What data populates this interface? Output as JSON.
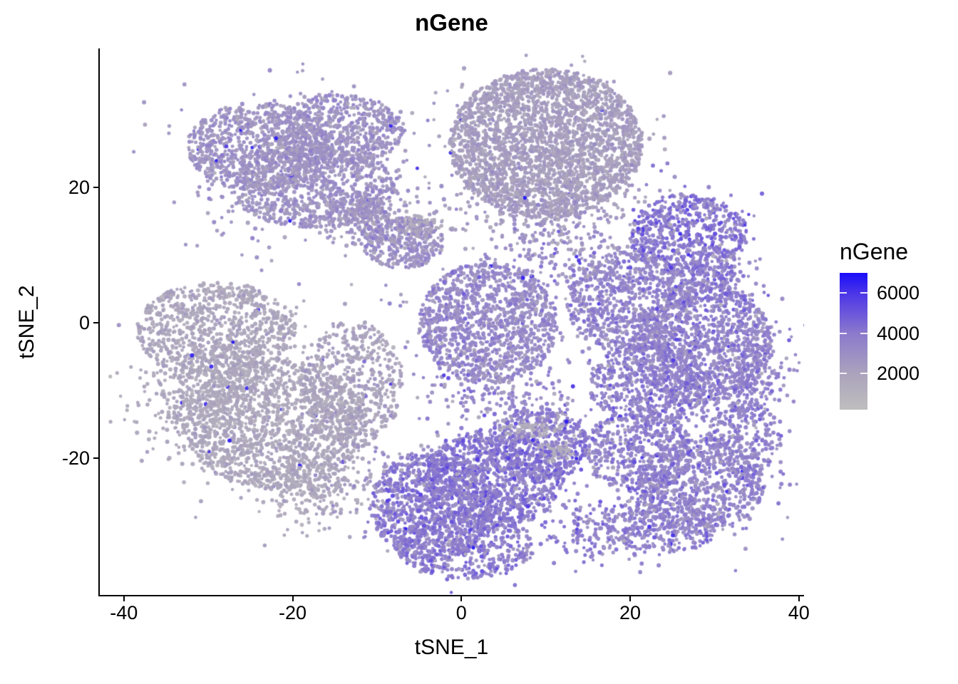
{
  "chart_data": {
    "type": "scatter",
    "title": "nGene",
    "xlabel": "tSNE_1",
    "ylabel": "tSNE_2",
    "x_ticks": [
      -40,
      -20,
      0,
      20,
      40
    ],
    "y_ticks": [
      20,
      0,
      -20
    ],
    "xlim": [
      -42.9,
      40.6
    ],
    "ylim": [
      -40.3,
      40.4
    ],
    "grid": false,
    "background": "#ffffff",
    "point_color_low": "#BFBEBE",
    "point_color_high": "#1A0DFA",
    "legend": {
      "title": "nGene",
      "position": "right",
      "ticks": [
        6000,
        4000,
        2000
      ],
      "range": [
        200,
        7000
      ]
    },
    "color_stops": [
      {
        "t": 0.0,
        "color": "#BFBEBE"
      },
      {
        "t": 0.26,
        "color": "#ABA3BC"
      },
      {
        "t": 0.56,
        "color": "#8B79CD"
      },
      {
        "t": 0.85,
        "color": "#4B35E8"
      },
      {
        "t": 1.0,
        "color": "#1A0DFA"
      }
    ],
    "clusters": [
      {
        "id": "topleft-lobe-1",
        "shape": "disc",
        "cx": -24,
        "cy": 26,
        "sx": 8.5,
        "sy": 6.6,
        "n": 800,
        "mean": 2750,
        "sd": 450
      },
      {
        "id": "topleft-lobe-2",
        "shape": "disc",
        "cx": -14.5,
        "cy": 28.5,
        "sx": 7.8,
        "sy": 5.2,
        "n": 600,
        "mean": 2850,
        "sd": 450
      },
      {
        "id": "topleft-lobe-3",
        "shape": "disc",
        "cx": -17.5,
        "cy": 20,
        "sx": 9.6,
        "sy": 6.0,
        "n": 800,
        "mean": 2800,
        "sd": 450
      },
      {
        "id": "topleft-tail",
        "shape": "gauss",
        "cx": -11.5,
        "cy": 15.5,
        "sx": 2.2,
        "sy": 2.0,
        "n": 180,
        "mean": 2700,
        "sd": 450
      },
      {
        "id": "topleft-halo",
        "shape": "gauss",
        "cx": -20,
        "cy": 23,
        "sx": 8,
        "sy": 6,
        "n": 250,
        "mean": 2800,
        "sd": 450
      },
      {
        "id": "topcenter-disc",
        "shape": "disc",
        "cx": 10,
        "cy": 26.5,
        "sx": 11.5,
        "sy": 11.0,
        "n": 2600,
        "mean": 2250,
        "sd": 330
      },
      {
        "id": "topcenter-halo",
        "shape": "gauss",
        "cx": 10,
        "cy": 26,
        "sx": 7.5,
        "sy": 7.0,
        "n": 200,
        "mean": 2300,
        "sd": 350
      },
      {
        "id": "topcenter-skirt",
        "shape": "gauss",
        "cx": 9,
        "cy": 16.5,
        "sx": 6.5,
        "sy": 2.6,
        "n": 230,
        "mean": 2500,
        "sd": 450
      },
      {
        "id": "left-lobe-1",
        "shape": "disc",
        "cx": -29,
        "cy": -1,
        "sx": 9.5,
        "sy": 7.0,
        "n": 900,
        "mean": 1800,
        "sd": 360
      },
      {
        "id": "left-lobe-2",
        "shape": "disc",
        "cx": -22,
        "cy": -15,
        "sx": 11.0,
        "sy": 9.5,
        "n": 1300,
        "mean": 1750,
        "sd": 360
      },
      {
        "id": "left-lobe-3",
        "shape": "disc",
        "cx": -13,
        "cy": -9,
        "sx": 6.0,
        "sy": 9.5,
        "n": 500,
        "mean": 2050,
        "sd": 420
      },
      {
        "id": "left-lobe-4",
        "shape": "gauss",
        "cx": -31,
        "cy": -11,
        "sx": 3.8,
        "sy": 3.8,
        "n": 350,
        "mean": 1700,
        "sd": 340
      },
      {
        "id": "left-tail",
        "shape": "gauss",
        "cx": -18,
        "cy": -25,
        "sx": 3.0,
        "sy": 2.5,
        "n": 200,
        "mean": 1700,
        "sd": 350
      },
      {
        "id": "left-halo",
        "shape": "gauss",
        "cx": -23,
        "cy": -12,
        "sx": 8,
        "sy": 7,
        "n": 300,
        "mean": 1800,
        "sd": 380
      },
      {
        "id": "midsmall-core",
        "shape": "disc",
        "cx": -6.9,
        "cy": 11.9,
        "sx": 4.8,
        "sy": 3.9,
        "n": 330,
        "mean": 2900,
        "sd": 600
      },
      {
        "id": "midsmall-grayarc",
        "shape": "gauss",
        "cx": -5.2,
        "cy": 14.5,
        "sx": 1.6,
        "sy": 0.9,
        "n": 80,
        "mean": 1550,
        "sd": 250
      },
      {
        "id": "center-disc",
        "shape": "disc",
        "cx": 3.2,
        "cy": 0,
        "sx": 8.2,
        "sy": 9.0,
        "n": 1100,
        "mean": 3250,
        "sd": 550
      },
      {
        "id": "center-halo",
        "shape": "gauss",
        "cx": 3.2,
        "cy": 0,
        "sx": 6,
        "sy": 6,
        "n": 150,
        "mean": 3250,
        "sd": 600
      },
      {
        "id": "right-lobe-1",
        "shape": "disc",
        "cx": 20,
        "cy": 3,
        "sx": 7.5,
        "sy": 7.5,
        "n": 700,
        "mean": 3450,
        "sd": 600
      },
      {
        "id": "right-lobe-2",
        "shape": "disc",
        "cx": 28.5,
        "cy": -3,
        "sx": 8.2,
        "sy": 9.0,
        "n": 900,
        "mean": 3650,
        "sd": 600
      },
      {
        "id": "right-lobe-3",
        "shape": "disc",
        "cx": 22,
        "cy": -9,
        "sx": 7.0,
        "sy": 6.2,
        "n": 500,
        "mean": 3650,
        "sd": 600
      },
      {
        "id": "right-arm",
        "shape": "gauss",
        "cx": 35,
        "cy": -6,
        "sx": 1.8,
        "sy": 3.8,
        "n": 180,
        "mean": 3500,
        "sd": 600
      },
      {
        "id": "right-halo",
        "shape": "gauss",
        "cx": 25,
        "cy": -2,
        "sx": 7,
        "sy": 6.5,
        "n": 250,
        "mean": 3550,
        "sd": 600
      },
      {
        "id": "topright-core",
        "shape": "disc",
        "cx": 26.9,
        "cy": 13,
        "sx": 7.0,
        "sy": 6.0,
        "n": 550,
        "mean": 4100,
        "sd": 700
      },
      {
        "id": "topright-tail",
        "shape": "gauss",
        "cx": 30.5,
        "cy": 6.5,
        "sx": 1.6,
        "sy": 2.4,
        "n": 110,
        "mean": 3900,
        "sd": 650
      },
      {
        "id": "topright-halo",
        "shape": "gauss",
        "cx": 27,
        "cy": 12,
        "sx": 5,
        "sy": 4.5,
        "n": 120,
        "mean": 4000,
        "sd": 700
      },
      {
        "id": "bottomcenter-1",
        "shape": "disc",
        "cx": -3.5,
        "cy": -27,
        "sx": 7.2,
        "sy": 8.2,
        "n": 900,
        "mean": 3900,
        "sd": 650
      },
      {
        "id": "bottomcenter-2",
        "shape": "disc",
        "cx": 4,
        "cy": -23,
        "sx": 8.2,
        "sy": 7.2,
        "n": 850,
        "mean": 4000,
        "sd": 650
      },
      {
        "id": "bottomcenter-3",
        "shape": "disc",
        "cx": 9,
        "cy": -18,
        "sx": 6.2,
        "sy": 5.5,
        "n": 450,
        "mean": 3900,
        "sd": 650
      },
      {
        "id": "bottomcenter-4",
        "shape": "disc",
        "cx": 0.5,
        "cy": -33,
        "sx": 8.2,
        "sy": 4.8,
        "n": 420,
        "mean": 3800,
        "sd": 650
      },
      {
        "id": "bottomcenter-halo",
        "shape": "gauss",
        "cx": 2,
        "cy": -25,
        "sx": 7,
        "sy": 6,
        "n": 250,
        "mean": 3900,
        "sd": 650
      },
      {
        "id": "bottomright-1",
        "shape": "disc",
        "cx": 21,
        "cy": -19,
        "sx": 6.4,
        "sy": 6.4,
        "n": 480,
        "mean": 3650,
        "sd": 600
      },
      {
        "id": "bottomright-2",
        "shape": "disc",
        "cx": 28.5,
        "cy": -24,
        "sx": 7.4,
        "sy": 7.0,
        "n": 600,
        "mean": 3550,
        "sd": 600
      },
      {
        "id": "bottomright-3",
        "shape": "disc",
        "cx": 33.5,
        "cy": -17,
        "sx": 4.4,
        "sy": 5.4,
        "n": 230,
        "mean": 3500,
        "sd": 600
      },
      {
        "id": "bottomright-4",
        "shape": "disc",
        "cx": 24,
        "cy": -29.5,
        "sx": 7.0,
        "sy": 4.4,
        "n": 320,
        "mean": 3700,
        "sd": 600
      },
      {
        "id": "bottomright-halo",
        "shape": "gauss",
        "cx": 27,
        "cy": -22,
        "sx": 6.5,
        "sy": 5.5,
        "n": 200,
        "mean": 3600,
        "sd": 600
      },
      {
        "id": "gray-blob-1",
        "shape": "gauss",
        "cx": 8.5,
        "cy": -15.7,
        "sx": 1.7,
        "sy": 0.8,
        "n": 70,
        "mean": 1400,
        "sd": 200
      },
      {
        "id": "gray-blob-2",
        "shape": "gauss",
        "cx": 11.5,
        "cy": -18.9,
        "sx": 1.2,
        "sy": 1.0,
        "n": 60,
        "mean": 1300,
        "sd": 200
      },
      {
        "id": "bridge-top",
        "shape": "gauss",
        "cx": 13,
        "cy": 9,
        "sx": 5.5,
        "sy": 4.0,
        "n": 220,
        "mean": 3100,
        "sd": 700
      },
      {
        "id": "bridge-center",
        "shape": "gauss",
        "cx": 4,
        "cy": -10.5,
        "sx": 5.0,
        "sy": 3.0,
        "n": 150,
        "mean": 3300,
        "sd": 700
      },
      {
        "id": "bridge-upperleft",
        "shape": "gauss",
        "cx": -10,
        "cy": 17,
        "sx": 2.6,
        "sy": 2.4,
        "n": 90,
        "mean": 2700,
        "sd": 500
      },
      {
        "id": "bridge-right",
        "shape": "gauss",
        "cx": 29.5,
        "cy": -11,
        "sx": 4.0,
        "sy": 2.2,
        "n": 130,
        "mean": 3600,
        "sd": 600
      },
      {
        "id": "bridge-lowerleft",
        "shape": "gauss",
        "cx": -11,
        "cy": -24,
        "sx": 2.8,
        "sy": 3.2,
        "n": 70,
        "mean": 2300,
        "sd": 600
      },
      {
        "id": "bridge-bottom",
        "shape": "gauss",
        "cx": 16,
        "cy": -31,
        "sx": 3.2,
        "sy": 2.2,
        "n": 150,
        "mean": 3800,
        "sd": 600
      }
    ]
  }
}
